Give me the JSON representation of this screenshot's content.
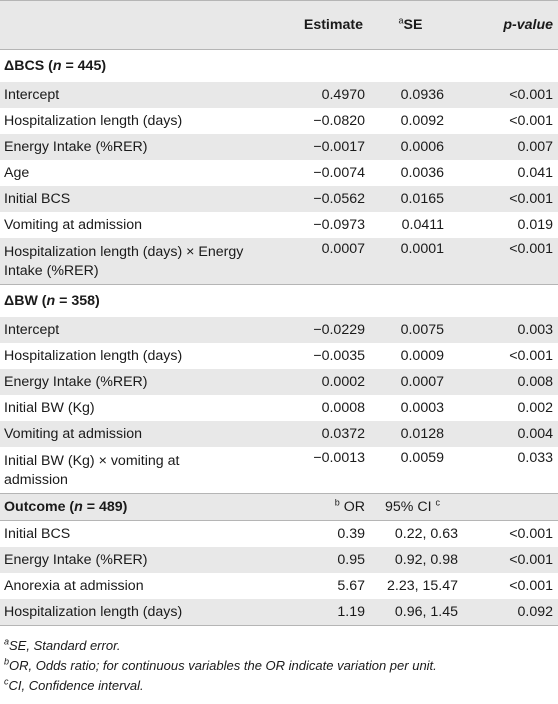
{
  "header": {
    "estimate": "Estimate",
    "se_sup": "a",
    "se": "SE",
    "pvalue": "p-value"
  },
  "bcs": {
    "title_delta": "ΔBCS (",
    "title_n": "n",
    "title_rest": " = 445)",
    "rows": [
      {
        "label": "Intercept",
        "est": "0.4970",
        "se": "0.0936",
        "p": "<0.001"
      },
      {
        "label": "Hospitalization length (days)",
        "est": "−0.0820",
        "se": "0.0092",
        "p": "<0.001"
      },
      {
        "label": "Energy Intake (%RER)",
        "est": "−0.0017",
        "se": "0.0006",
        "p": "0.007"
      },
      {
        "label": "Age",
        "est": "−0.0074",
        "se": "0.0036",
        "p": "0.041"
      },
      {
        "label": "Initial BCS",
        "est": "−0.0562",
        "se": "0.0165",
        "p": "<0.001"
      },
      {
        "label": "Vomiting at admission",
        "est": "−0.0973",
        "se": "0.0411",
        "p": "0.019"
      },
      {
        "label_l1": "Hospitalization length (days) × Energy",
        "label_l2": "Intake (%RER)",
        "est": "0.0007",
        "se": "0.0001",
        "p": "<0.001"
      }
    ]
  },
  "bw": {
    "title_delta": "ΔBW (",
    "title_n": "n",
    "title_rest": " = 358)",
    "rows": [
      {
        "label": "Intercept",
        "est": "−0.0229",
        "se": "0.0075",
        "p": "0.003"
      },
      {
        "label": "Hospitalization length (days)",
        "est": "−0.0035",
        "se": "0.0009",
        "p": "<0.001"
      },
      {
        "label": "Energy Intake (%RER)",
        "est": "0.0002",
        "se": "0.0007",
        "p": "0.008"
      },
      {
        "label": "Initial BW (Kg)",
        "est": "0.0008",
        "se": "0.0003",
        "p": "0.002"
      },
      {
        "label": "Vomiting at admission",
        "est": "0.0372",
        "se": "0.0128",
        "p": "0.004"
      },
      {
        "label_l1": "Initial BW (Kg) × vomiting at",
        "label_l2": "admission",
        "est": "−0.0013",
        "se": "0.0059",
        "p": "0.033"
      }
    ]
  },
  "outcome": {
    "title_a": "Outcome (",
    "title_n": "n",
    "title_rest": " = 489)",
    "or_sup": "b",
    "or": "OR",
    "ci": "95% CI",
    "ci_sup": "c",
    "rows": [
      {
        "label": "Initial BCS",
        "or": "0.39",
        "ci": "0.22, 0.63",
        "p": "<0.001"
      },
      {
        "label": "Energy Intake (%RER)",
        "or": "0.95",
        "ci": "0.92, 0.98",
        "p": "<0.001"
      },
      {
        "label": "Anorexia at admission",
        "or": "5.67",
        "ci": "2.23, 15.47",
        "p": "<0.001"
      },
      {
        "label": "Hospitalization length (days)",
        "or": "1.19",
        "ci": "0.96, 1.45",
        "p": "0.092"
      }
    ]
  },
  "footnotes": [
    {
      "sup": "a",
      "text": "SE, Standard error."
    },
    {
      "sup": "b",
      "text": "OR, Odds ratio; for continuous variables the OR indicate variation per unit."
    },
    {
      "sup": "c",
      "text": "CI, Confidence interval."
    }
  ]
}
